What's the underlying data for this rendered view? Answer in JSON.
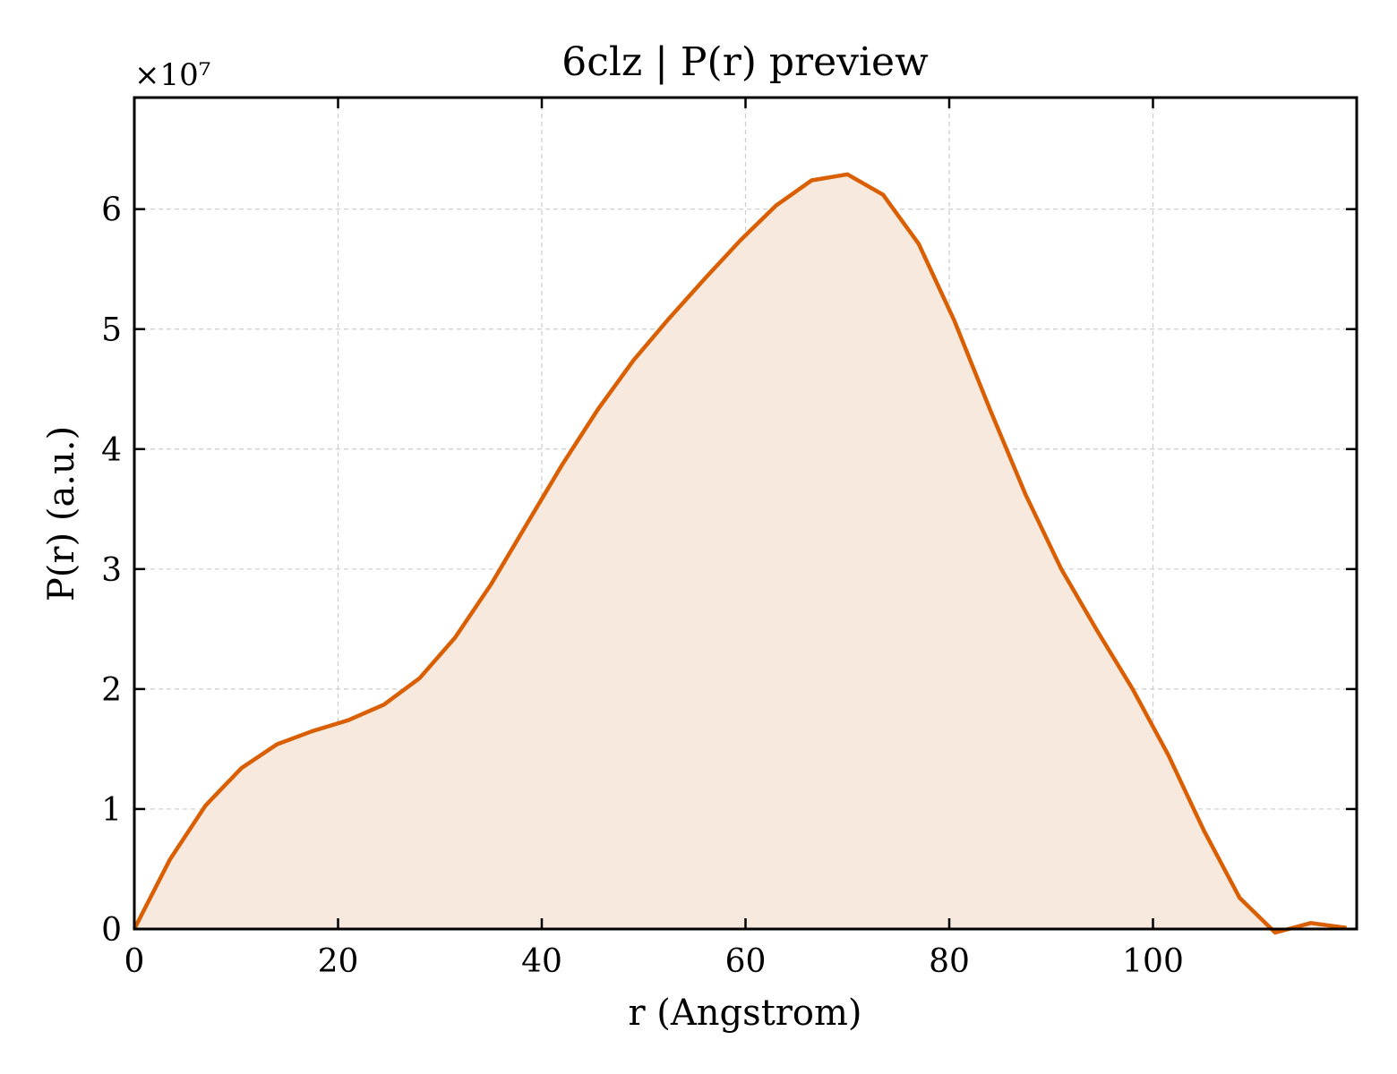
{
  "chart_data": {
    "type": "area",
    "title": "6clz | P(r) preview",
    "xlabel": "r (Angstrom)",
    "ylabel": "P(r) (a.u.)",
    "y_multiplier": "×10⁷",
    "xlim": [
      0,
      120
    ],
    "ylim": [
      0,
      6.93
    ],
    "x_ticks": [
      0,
      20,
      40,
      60,
      80,
      100
    ],
    "y_ticks": [
      0,
      1,
      2,
      3,
      4,
      5,
      6
    ],
    "grid": true,
    "legend": "none",
    "colors": {
      "line": "#d95f02",
      "fill": "#f8e9df"
    },
    "series": [
      {
        "x": [
          0,
          3.5,
          7,
          10.5,
          14,
          17.5,
          21,
          24.5,
          28,
          31.5,
          35,
          38.5,
          42,
          45.5,
          49,
          52.5,
          56,
          59.5,
          63,
          66.5,
          70,
          73.5,
          77,
          80.5,
          84,
          87.5,
          91,
          94.5,
          98,
          101.5,
          105,
          108.5,
          112,
          115.5,
          119
        ],
        "values": [
          0,
          0.58,
          1.03,
          1.34,
          1.54,
          1.65,
          1.74,
          1.87,
          2.09,
          2.43,
          2.87,
          3.37,
          3.87,
          4.33,
          4.74,
          5.09,
          5.42,
          5.74,
          6.03,
          6.24,
          6.29,
          6.12,
          5.71,
          5.07,
          4.33,
          3.62,
          3.0,
          2.49,
          2.0,
          1.45,
          0.82,
          0.26,
          -0.03,
          0.05,
          0.01
        ]
      }
    ]
  }
}
